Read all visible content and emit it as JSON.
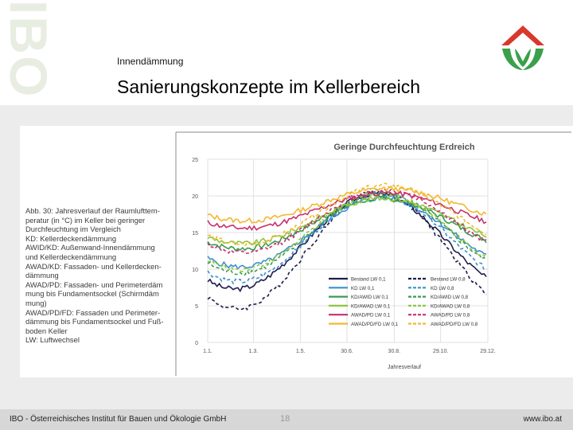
{
  "header": {
    "watermark": "IBO",
    "subtitle": "Innendämmung",
    "title": "Sanierungskonzepte im Kellerbereich"
  },
  "caption": {
    "lines": [
      "Abb. 30: Jahresverlauf der Raumlufttem-",
      "peratur (in °C) im Keller bei geringer",
      "Durchfeuchtung im Vergleich",
      "KD: Kellerdeckendämmung",
      "AWID/KD: Außenwand-Innendämmung",
      "und Kellerdeckendämmung",
      "AWAD/KD: Fassaden- und Kellerdecken-",
      "dämmung",
      "AWAD/PD: Fassaden- und Perimeterdäm",
      "mung bis Fundamentsockel (Schirmdäm",
      "mung)",
      "AWAD/PD/FD: Fassaden und Perimeter-",
      "dämmung bis Fundamentsockel und Fuß-",
      "boden Keller",
      "LW: Luftwechsel"
    ]
  },
  "colors": {
    "bestand": "#1e1e4e",
    "kd": "#3a8fd0",
    "awid": "#3c9a52",
    "awad_kd": "#8ec63f",
    "awad_pd": "#c6306f",
    "awad_pd_fd": "#f2b830",
    "grid": "#d9d9d9"
  },
  "chart_data": {
    "type": "line",
    "title": "Geringe Durchfeuchtung Erdreich",
    "xlabel": "Jahresverlauf",
    "ylabel": "",
    "x_tick_labels": [
      "1.1.",
      "1.3.",
      "1.5.",
      "30.6.",
      "30.8.",
      "29.10.",
      "29.12."
    ],
    "x_tick_days": [
      0,
      59,
      120,
      180,
      241,
      301,
      362
    ],
    "ylim": [
      0,
      25
    ],
    "y_ticks": [
      0,
      5,
      10,
      15,
      20,
      25
    ],
    "series": [
      {
        "name": "Bestand LW 0,1",
        "color_key": "bestand",
        "dash": false,
        "mean": 13.8,
        "amp": 6.5,
        "phase": 218
      },
      {
        "name": "Bestand LW 0,8",
        "color_key": "bestand",
        "dash": true,
        "mean": 12.6,
        "amp": 8.0,
        "phase": 220
      },
      {
        "name": "KD LW 0,1",
        "color_key": "kd",
        "dash": false,
        "mean": 15.0,
        "amp": 4.7,
        "phase": 225
      },
      {
        "name": "KD LW 0,8",
        "color_key": "kd",
        "dash": true,
        "mean": 14.3,
        "amp": 6.0,
        "phase": 222
      },
      {
        "name": "KD/AWID LW 0,1",
        "color_key": "awid",
        "dash": false,
        "mean": 16.2,
        "amp": 3.4,
        "phase": 226
      },
      {
        "name": "KD/AWID LW 0,8",
        "color_key": "awid",
        "dash": true,
        "mean": 14.9,
        "amp": 5.4,
        "phase": 224
      },
      {
        "name": "KD/AWAD LW 0,1",
        "color_key": "awad_kd",
        "dash": false,
        "mean": 16.6,
        "amp": 3.1,
        "phase": 227
      },
      {
        "name": "KD/AWAD LW 0,8",
        "color_key": "awad_kd",
        "dash": true,
        "mean": 15.2,
        "amp": 5.2,
        "phase": 224
      },
      {
        "name": "AWAD/PD LW 0,1",
        "color_key": "awad_pd",
        "dash": false,
        "mean": 18.0,
        "amp": 2.4,
        "phase": 230
      },
      {
        "name": "AWAD/PD LW 0,8",
        "color_key": "awad_pd",
        "dash": true,
        "mean": 16.5,
        "amp": 4.3,
        "phase": 228
      },
      {
        "name": "AWAD/PD/FD LW 0,1",
        "color_key": "awad_pd_fd",
        "dash": false,
        "mean": 18.8,
        "amp": 2.2,
        "phase": 232
      },
      {
        "name": "AWAD/PD/FD LW 0,8",
        "color_key": "awad_pd_fd",
        "dash": true,
        "mean": 17.4,
        "amp": 4.0,
        "phase": 230
      }
    ],
    "legend_position": "bottom-right"
  },
  "footer": {
    "institute": "IBO - Österreichisches Institut für Bauen und Ökologie GmbH",
    "page": "18",
    "url": "www.ibo.at"
  }
}
